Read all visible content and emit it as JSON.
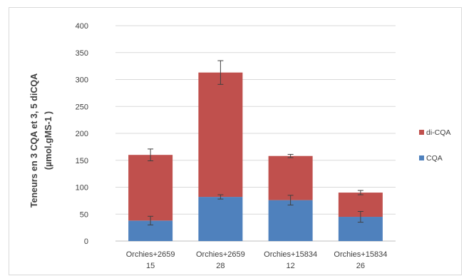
{
  "chart_data": {
    "type": "bar",
    "stacked": true,
    "categories": [
      [
        "Orchies+2659",
        "15"
      ],
      [
        "Orchies+2659",
        "28"
      ],
      [
        "Orchies+15834",
        "12"
      ],
      [
        "Orchies+15834",
        "26"
      ]
    ],
    "series": [
      {
        "name": "CQA",
        "color": "#4f81bd",
        "values": [
          38,
          82,
          76,
          45
        ],
        "error": [
          8,
          4,
          9,
          10
        ]
      },
      {
        "name": "di-CQA",
        "color": "#c0504d",
        "values": [
          122,
          231,
          82,
          45
        ],
        "error": [
          11,
          22,
          3,
          4
        ]
      }
    ],
    "ylabel_lines": [
      "Teneurs en 3 CQA et 3, 5 diCQA",
      "(µmol.gMS-1 )"
    ],
    "ylim": [
      0,
      400
    ],
    "yticks": [
      0,
      50,
      100,
      150,
      200,
      250,
      300,
      350,
      400
    ],
    "grid": true,
    "legend_position": "right",
    "legend_order": [
      "di-CQA",
      "CQA"
    ]
  }
}
